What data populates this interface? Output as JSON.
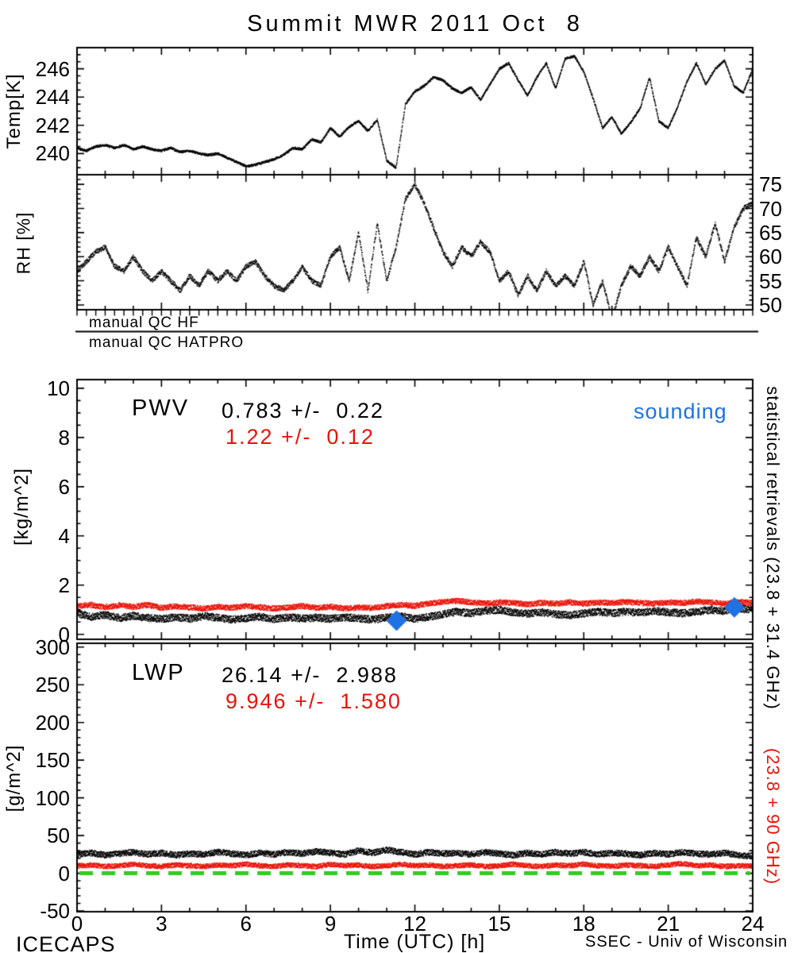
{
  "title": "Summit MWR 2011 Oct  8",
  "footer": {
    "left": "ICECAPS",
    "right": "SSEC - Univ of Wisconsin"
  },
  "qc": {
    "hf": "manual QC HF",
    "hatpro": "manual QC HATPRO"
  },
  "right_axis_labels": {
    "black": "statistical retrievals (23.8 + 31.4 GHz)",
    "red": "(23.8 + 90 GHz)"
  },
  "colors": {
    "black": "#000000",
    "red": "#ea1208",
    "blue": "#1e72e4",
    "green": "#33cc22"
  },
  "chart_data": {
    "type": "line",
    "title": "Summit MWR 2011 Oct  8",
    "x": {
      "label": "Time (UTC) [h]",
      "min": 0,
      "max": 24,
      "ticks": [
        0,
        3,
        6,
        9,
        12,
        15,
        18,
        21,
        24
      ],
      "minor_step": 1
    },
    "panels": [
      {
        "id": "temp",
        "ylabel": "Temp[K]",
        "ylim": [
          238.5,
          247.5
        ],
        "yticks": [
          240,
          242,
          244,
          246
        ],
        "ytick_side": "left",
        "series": [
          {
            "name": "temperature",
            "color": "black",
            "noise": 0.08,
            "t0": 0,
            "dt": 0.33333,
            "v": [
              240.4,
              240.2,
              240.5,
              240.6,
              240.4,
              240.6,
              240.3,
              240.5,
              240.3,
              240.2,
              240.4,
              240.1,
              240.2,
              240.0,
              239.9,
              240.0,
              239.7,
              239.4,
              239.1,
              239.2,
              239.4,
              239.6,
              239.9,
              240.4,
              240.3,
              241.0,
              240.8,
              241.8,
              241.2,
              241.9,
              242.3,
              241.6,
              242.4,
              239.5,
              239.0,
              243.5,
              244.4,
              244.8,
              245.4,
              245.2,
              244.6,
              244.3,
              244.7,
              243.8,
              244.9,
              246.0,
              246.4,
              245.2,
              244.1,
              245.4,
              246.4,
              244.6,
              246.7,
              246.9,
              245.8,
              243.9,
              241.8,
              242.6,
              241.4,
              242.2,
              243.2,
              245.4,
              242.3,
              241.8,
              243.3,
              245.1,
              246.4,
              244.9,
              246.0,
              246.6,
              244.8,
              244.3,
              246.0
            ]
          }
        ]
      },
      {
        "id": "rh",
        "ylabel": "RH [%]",
        "ylim": [
          49,
          77
        ],
        "yticks": [
          50,
          55,
          60,
          65,
          70,
          75
        ],
        "ytick_side": "right",
        "series": [
          {
            "name": "relative-humidity",
            "color": "black",
            "noise": 0.5,
            "t0": 0,
            "dt": 0.33333,
            "v": [
              57,
              59,
              61,
              62,
              58,
              57,
              60,
              57,
              55,
              57,
              55,
              53,
              56,
              54,
              57,
              55,
              57,
              55,
              58,
              59,
              56,
              54,
              53,
              55,
              58,
              55,
              54,
              60,
              62,
              55,
              65,
              53,
              67,
              55,
              62,
              72,
              75,
              71,
              66,
              61,
              58,
              62,
              60,
              63,
              61,
              55,
              57,
              52,
              56,
              53,
              57,
              54,
              56,
              54,
              59,
              50,
              55,
              47,
              54,
              58,
              56,
              60,
              57,
              62,
              58,
              54,
              64,
              60,
              67,
              59,
              66,
              70,
              71
            ]
          }
        ]
      },
      {
        "id": "pwv",
        "ylabel": "[kg/m^2]",
        "ylim": [
          -0.2,
          10.35
        ],
        "yticks": [
          0,
          2,
          4,
          6,
          8,
          10
        ],
        "ytick_side": "left",
        "stats": {
          "label": "PWV",
          "black": "0.783 +/-  0.22",
          "red": "1.22 +/-  0.12"
        },
        "legend": {
          "sounding": "sounding"
        },
        "markers": {
          "name": "sounding",
          "color": "blue",
          "shape": "diamond",
          "points": [
            {
              "t": 11.35,
              "v": 0.56
            },
            {
              "t": 23.35,
              "v": 1.1
            }
          ]
        },
        "series": [
          {
            "name": "pwv-23.8-31.4GHz",
            "color": "black",
            "noise": 0.15,
            "t0": 0,
            "dt": 0.5,
            "v": [
              0.85,
              0.72,
              0.8,
              0.66,
              0.75,
              0.68,
              0.62,
              0.7,
              0.64,
              0.74,
              0.68,
              0.6,
              0.66,
              0.72,
              0.62,
              0.7,
              0.64,
              0.68,
              0.63,
              0.7,
              0.65,
              0.6,
              0.68,
              0.74,
              0.62,
              0.72,
              0.82,
              0.92,
              0.86,
              0.96,
              1.0,
              0.9,
              0.84,
              0.9,
              0.82,
              0.78,
              0.86,
              0.92,
              0.86,
              0.92,
              0.88,
              0.95,
              0.9,
              0.86,
              0.92,
              1.0,
              0.95,
              1.05,
              1.0
            ]
          },
          {
            "name": "pwv-23.8-90GHz",
            "color": "red",
            "noise": 0.11,
            "t0": 0,
            "dt": 0.5,
            "v": [
              1.15,
              1.2,
              1.1,
              1.18,
              1.12,
              1.2,
              1.08,
              1.14,
              1.1,
              1.05,
              1.12,
              1.08,
              1.15,
              1.1,
              1.05,
              1.1,
              1.15,
              1.08,
              1.12,
              1.05,
              1.1,
              1.08,
              1.15,
              1.2,
              1.16,
              1.26,
              1.32,
              1.36,
              1.3,
              1.25,
              1.3,
              1.28,
              1.22,
              1.28,
              1.25,
              1.3,
              1.25,
              1.3,
              1.28,
              1.32,
              1.28,
              1.25,
              1.3,
              1.28,
              1.34,
              1.3,
              1.25,
              1.32,
              1.28
            ]
          }
        ]
      },
      {
        "id": "lwp",
        "ylabel": "[g/m^2]",
        "ylim": [
          -51,
          305
        ],
        "yticks": [
          -50,
          0,
          50,
          100,
          150,
          200,
          250,
          300
        ],
        "ytick_side": "left",
        "stats": {
          "label": "LWP",
          "black": "26.14 +/-  2.988",
          "red": "9.946 +/-  1.580"
        },
        "zero_line": {
          "color": "green",
          "style": "dashed",
          "v": 0
        },
        "series": [
          {
            "name": "lwp-23.8-31.4GHz",
            "color": "black",
            "noise": 4.0,
            "t0": 0,
            "dt": 0.5,
            "v": [
              25,
              27,
              24,
              26,
              28,
              25,
              27,
              24,
              26,
              25,
              28,
              26,
              24,
              27,
              25,
              28,
              26,
              29,
              27,
              25,
              30,
              27,
              31,
              28,
              25,
              28,
              26,
              27,
              25,
              28,
              26,
              24,
              27,
              25,
              28,
              26,
              28,
              25,
              27,
              26,
              24,
              27,
              25,
              28,
              26,
              25,
              27,
              24,
              23
            ]
          },
          {
            "name": "lwp-23.8-90GHz",
            "color": "red",
            "noise": 3.2,
            "t0": 0,
            "dt": 0.5,
            "v": [
              10,
              11,
              9,
              10,
              12,
              10,
              9,
              11,
              10,
              9,
              11,
              10,
              12,
              10,
              9,
              11,
              10,
              9,
              12,
              10,
              11,
              9,
              10,
              12,
              10,
              11,
              9,
              10,
              11,
              9,
              10,
              12,
              10,
              9,
              11,
              10,
              12,
              10,
              9,
              11,
              10,
              9,
              11,
              13,
              10,
              11,
              9,
              10,
              10
            ]
          }
        ]
      }
    ]
  }
}
